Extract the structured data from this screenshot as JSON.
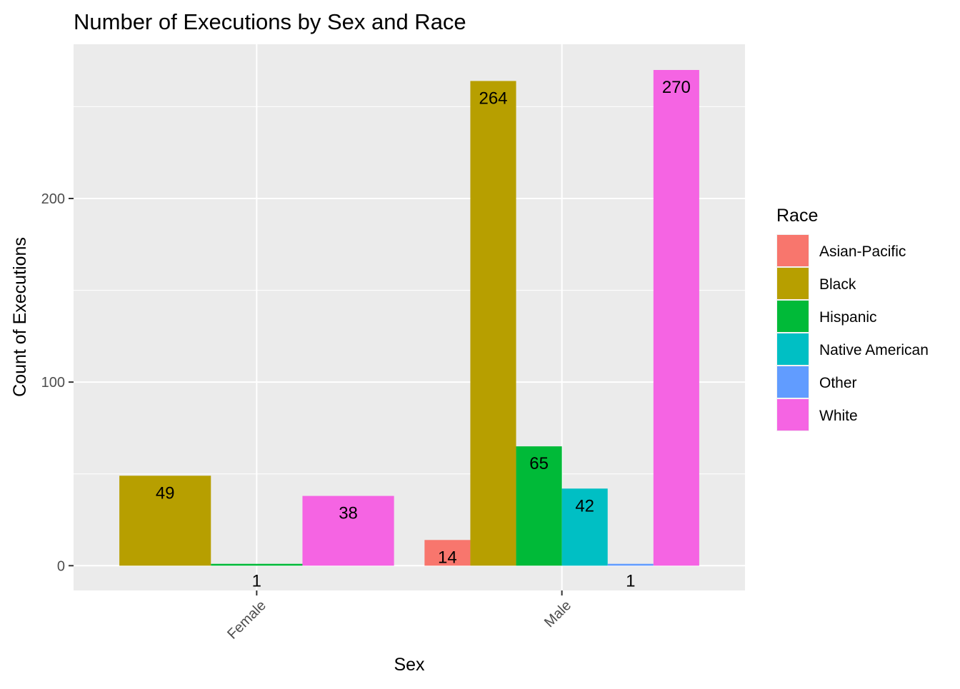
{
  "chart_data": {
    "type": "bar",
    "title": "Number of Executions by Sex and Race",
    "xlabel": "Sex",
    "ylabel": "Count of Executions",
    "categories": [
      "Female",
      "Male"
    ],
    "yticks": [
      0,
      100,
      200
    ],
    "ylim": [
      -13.5,
      284
    ],
    "grid": true,
    "legend": {
      "title": "Race",
      "placement": "right"
    },
    "series": [
      {
        "name": "Asian-Pacific",
        "color": "#F8766D",
        "values": [
          null,
          14
        ]
      },
      {
        "name": "Black",
        "color": "#B79F00",
        "values": [
          49,
          264
        ]
      },
      {
        "name": "Hispanic",
        "color": "#00BA38",
        "values": [
          1,
          65
        ]
      },
      {
        "name": "Native American",
        "color": "#00BFC4",
        "values": [
          null,
          42
        ]
      },
      {
        "name": "Other",
        "color": "#619CFF",
        "values": [
          null,
          1
        ]
      },
      {
        "name": "White",
        "color": "#F564E3",
        "values": [
          38,
          270
        ]
      }
    ]
  }
}
